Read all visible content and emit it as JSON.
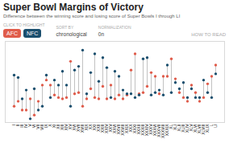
{
  "chart_data": {
    "type": "dumbbell",
    "title": "Super Bowl Margins of Victory",
    "subtitle": "Difference between the winning score and losing score of Super Bowls I through LI",
    "annotations": [
      "CLICK TO HIGHLIGHT",
      "SORT BY",
      "chronological",
      "NORMALIZATION",
      "0n",
      "HOW TO READ"
    ],
    "categories": [
      "I",
      "II",
      "III",
      "IV",
      "V",
      "VI",
      "VII",
      "VIII",
      "IX",
      "X",
      "XI",
      "XII",
      "XIII",
      "XIV",
      "XV",
      "XVI",
      "XVII",
      "XVIII",
      "XIX",
      "XX",
      "XXI",
      "XXII",
      "XXIII",
      "XXIV",
      "XXV",
      "XXVI",
      "XXVII",
      "XXVIII",
      "XXIX",
      "XXX",
      "XXXI",
      "XXXII",
      "XXXIII",
      "XXXIV",
      "XXXV",
      "XXXVI",
      "XXXVII",
      "XXXVIII",
      "XXXIX",
      "XL",
      "XLI",
      "XLII",
      "XLIII",
      "XLIV",
      "XLV",
      "XLVI",
      "XLVII",
      "XLVIII",
      "XLIX",
      "L",
      "LI"
    ],
    "series": [
      {
        "name": "AFC",
        "color": "#e05c4b",
        "values": [
          10,
          14,
          7,
          7,
          16,
          3,
          14,
          27,
          31,
          27,
          19,
          17,
          16,
          17,
          46,
          20,
          21,
          10,
          16,
          24,
          17,
          16,
          26,
          16,
          27,
          16,
          19,
          16,
          19,
          39,
          52,
          20,
          21,
          26,
          37,
          34,
          20,
          34,
          34,
          48,
          32,
          21,
          17,
          14,
          27,
          21,
          14,
          17,
          28,
          34,
          43
        ]
      },
      {
        "name": "NFC",
        "color": "#1a4f6e",
        "values": [
          35,
          33,
          16,
          23,
          0,
          24,
          7,
          10,
          35,
          17,
          31,
          27,
          38,
          27,
          10,
          39,
          42,
          55,
          20,
          37,
          52,
          30,
          49,
          41,
          17,
          38,
          34,
          23,
          20,
          20,
          17,
          19,
          48,
          49,
          19,
          21,
          23,
          19,
          43,
          21,
          29,
          24,
          29,
          17,
          24,
          17,
          17,
          31,
          21,
          17,
          36
        ]
      }
    ],
    "ylim": [
      -3,
      62
    ],
    "tick_labels": "x",
    "grid": false,
    "legend": "top-left"
  }
}
